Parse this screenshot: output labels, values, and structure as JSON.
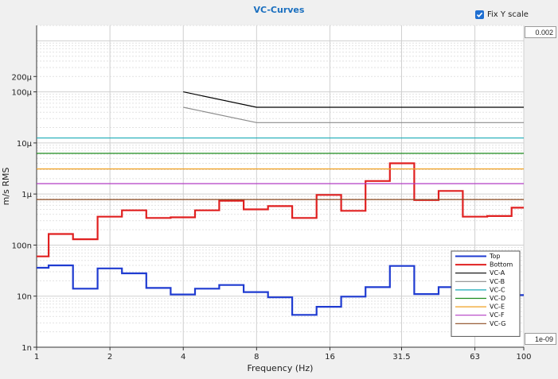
{
  "chart_data": {
    "type": "line",
    "title": "VC-Curves",
    "xlabel": "Frequency (Hz)",
    "ylabel": "m/s RMS",
    "x_scale": "log",
    "y_scale": "log",
    "xlim": [
      1,
      100
    ],
    "ylim": [
      1e-09,
      0.002
    ],
    "x_ticks": [
      1,
      2,
      4,
      8,
      16,
      31.5,
      63,
      100
    ],
    "x_tick_labels": [
      "1",
      "2",
      "4",
      "8",
      "16",
      "31.5",
      "63",
      "100"
    ],
    "y_ticks": [
      1e-09,
      1e-08,
      1e-07,
      1e-06,
      1e-05,
      0.0001,
      0.0002
    ],
    "y_tick_labels": [
      "1n",
      "10n",
      "100n",
      "1µ",
      "10µ",
      "100µ",
      "200µ"
    ],
    "grid": true,
    "legend_position": "bottom-right",
    "series": [
      {
        "name": "Top",
        "color": "#1f3bd1",
        "style": "step",
        "x": [
          1,
          1.12,
          1.41,
          1.78,
          2.24,
          2.82,
          3.55,
          4.47,
          5.62,
          7.08,
          8.91,
          11.2,
          14.1,
          17.8,
          22.4,
          28.2,
          35.5,
          44.7,
          56.2,
          70.8,
          89.1,
          100
        ],
        "y": [
          3.6e-08,
          4e-08,
          1.4e-08,
          3.5e-08,
          2.8e-08,
          1.45e-08,
          1.08e-08,
          1.4e-08,
          1.65e-08,
          1.2e-08,
          9.5e-09,
          4.3e-09,
          6.2e-09,
          9.8e-09,
          1.5e-08,
          3.9e-08,
          1.1e-08,
          1.5e-08,
          1.35e-08,
          1.1e-08,
          1.05e-08,
          1.05e-08
        ]
      },
      {
        "name": "Bottom",
        "color": "#e02020",
        "style": "step",
        "x": [
          1,
          1.12,
          1.41,
          1.78,
          2.24,
          2.82,
          3.55,
          4.47,
          5.62,
          7.08,
          8.91,
          11.2,
          14.1,
          17.8,
          22.4,
          28.2,
          35.5,
          44.7,
          56.2,
          70.8,
          89.1,
          100
        ],
        "y": [
          6e-08,
          1.65e-07,
          1.3e-07,
          3.6e-07,
          4.8e-07,
          3.4e-07,
          3.5e-07,
          4.8e-07,
          7.4e-07,
          5e-07,
          5.8e-07,
          3.4e-07,
          9.6e-07,
          4.7e-07,
          1.8e-06,
          4e-06,
          7.6e-07,
          1.15e-06,
          3.6e-07,
          3.7e-07,
          5.4e-07,
          5.4e-07
        ]
      },
      {
        "name": "VC-A",
        "color": "#000000",
        "style": "line",
        "x": [
          4,
          8,
          100
        ],
        "y": [
          0.0001,
          5e-05,
          5e-05
        ]
      },
      {
        "name": "VC-B",
        "color": "#8c8c8c",
        "style": "line",
        "x": [
          4,
          8,
          100
        ],
        "y": [
          5e-05,
          2.5e-05,
          2.5e-05
        ]
      },
      {
        "name": "VC-C",
        "color": "#17a9b6",
        "style": "line",
        "x": [
          1,
          100
        ],
        "y": [
          1.25e-05,
          1.25e-05
        ]
      },
      {
        "name": "VC-D",
        "color": "#1e8c1e",
        "style": "line",
        "x": [
          1,
          100
        ],
        "y": [
          6.25e-06,
          6.25e-06
        ]
      },
      {
        "name": "VC-E",
        "color": "#f0a020",
        "style": "line",
        "x": [
          1,
          100
        ],
        "y": [
          3.1e-06,
          3.1e-06
        ]
      },
      {
        "name": "VC-F",
        "color": "#b23cc4",
        "style": "line",
        "x": [
          1,
          100
        ],
        "y": [
          1.6e-06,
          1.6e-06
        ]
      },
      {
        "name": "VC-G",
        "color": "#8b4a20",
        "style": "line",
        "x": [
          1,
          100
        ],
        "y": [
          7.8e-07,
          7.8e-07
        ]
      }
    ]
  },
  "controls": {
    "fix_y_label": "Fix Y scale",
    "fix_y_checked": true,
    "y_max_value": "0.002",
    "y_min_value": "1e-09"
  }
}
